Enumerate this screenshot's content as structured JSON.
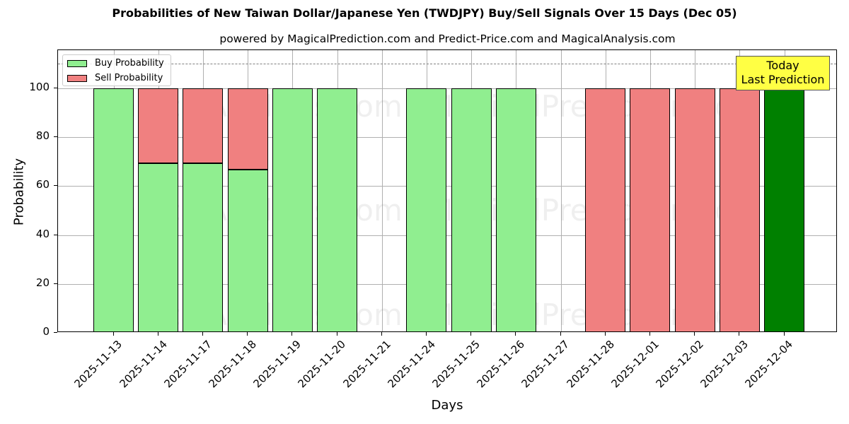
{
  "chart_data": {
    "type": "bar",
    "stacked": true,
    "title": "Probabilities of New Taiwan Dollar/Japanese Yen (TWDJPY) Buy/Sell Signals Over 15 Days (Dec 05)",
    "subtitle": "powered by MagicalPrediction.com and Predict-Price.com and MagicalAnalysis.com",
    "xlabel": "Days",
    "ylabel": "Probability",
    "ylim": [
      0,
      115
    ],
    "yticks": [
      0,
      20,
      40,
      60,
      80,
      100
    ],
    "grid": true,
    "legend_position": "upper left",
    "reference_line": {
      "y": 110,
      "style": "dashed",
      "color": "#808080"
    },
    "annotation": {
      "text_line1": "Today",
      "text_line2": "Last Prediction",
      "background": "#ffff44"
    },
    "categories": [
      "2025-11-13",
      "2025-11-14",
      "2025-11-17",
      "2025-11-18",
      "2025-11-19",
      "2025-11-20",
      "2025-11-21",
      "2025-11-24",
      "2025-11-25",
      "2025-11-26",
      "2025-11-27",
      "2025-11-28",
      "2025-12-01",
      "2025-12-02",
      "2025-12-03",
      "2025-12-04"
    ],
    "series": [
      {
        "name": "Buy Probability",
        "color": "#90ee90",
        "values": [
          100,
          69.5,
          69.5,
          66.8,
          100,
          100,
          null,
          100,
          100,
          100,
          null,
          0,
          0,
          0,
          0,
          100
        ]
      },
      {
        "name": "Sell Probability",
        "color": "#f08080",
        "values": [
          0,
          30.5,
          30.5,
          33.2,
          0,
          0,
          null,
          0,
          0,
          0,
          null,
          100,
          100,
          100,
          100,
          0
        ]
      }
    ],
    "highlight": {
      "category": "2025-12-04",
      "color": "#008000"
    }
  },
  "watermarks": [
    "MagicalAnalysis.com",
    "MagicalPrediction.com"
  ]
}
